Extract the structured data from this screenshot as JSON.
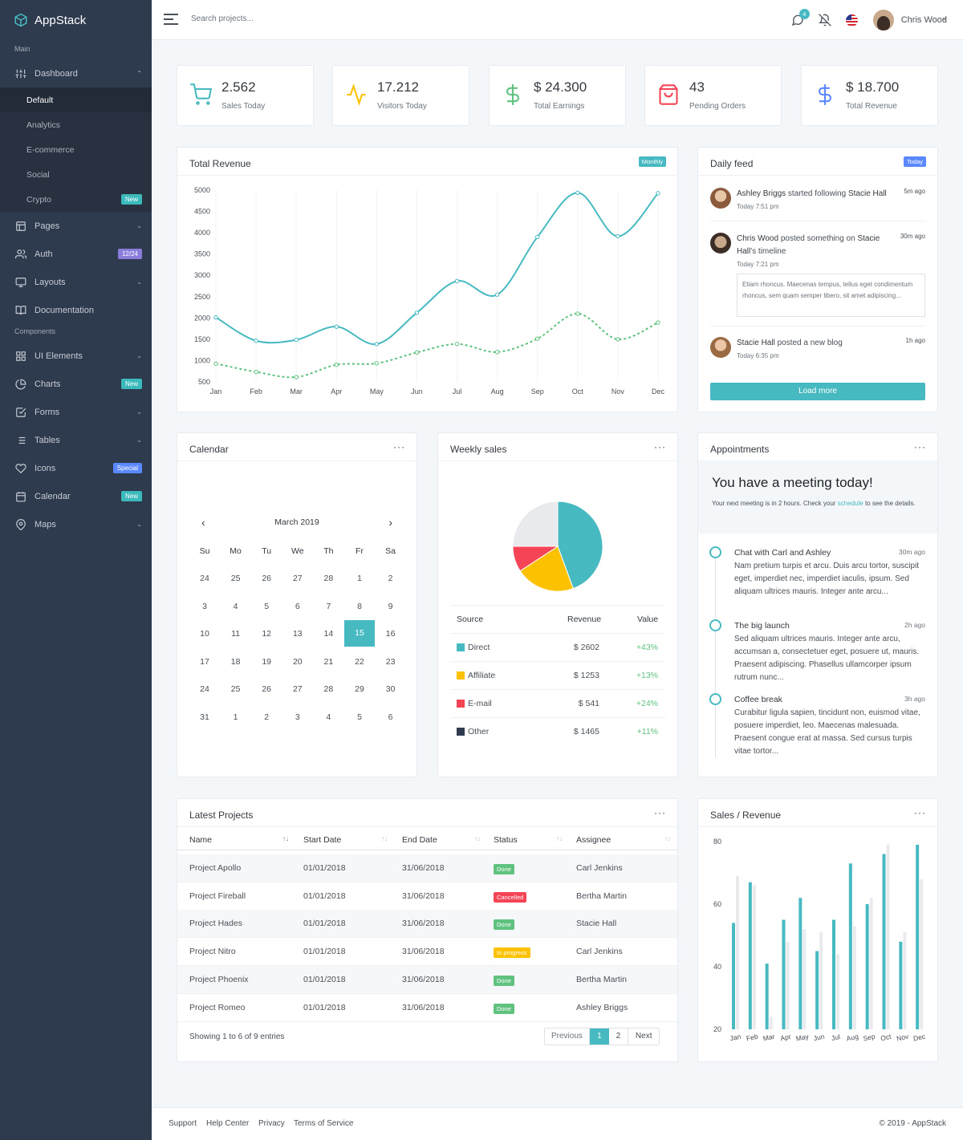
{
  "brand": "AppStack",
  "sidebar": {
    "header_main": "Main",
    "header_components": "Components",
    "dashboard": "Dashboard",
    "sub": [
      "Default",
      "Analytics",
      "E-commerce",
      "Social",
      "Crypto"
    ],
    "crypto_badge": "New",
    "pages": "Pages",
    "auth": "Auth",
    "auth_badge": "12/24",
    "layouts": "Layouts",
    "documentation": "Documentation",
    "ui": "UI Elements",
    "charts": "Charts",
    "charts_badge": "New",
    "forms": "Forms",
    "tables": "Tables",
    "icons": "Icons",
    "icons_badge": "Special",
    "calendar": "Calendar",
    "calendar_badge": "New",
    "maps": "Maps"
  },
  "topbar": {
    "search_placeholder": "Search projects...",
    "notif_count": "4",
    "user": "Chris Wood"
  },
  "stats": [
    {
      "value": "2.562",
      "label": "Sales Today",
      "icon": "cart-icon"
    },
    {
      "value": "17.212",
      "label": "Visitors Today",
      "icon": "activity-icon"
    },
    {
      "value": "$ 24.300",
      "label": "Total Earnings",
      "icon": "dollar-icon"
    },
    {
      "value": "43",
      "label": "Pending Orders",
      "icon": "shopping-bag-icon"
    },
    {
      "value": "$ 18.700",
      "label": "Total Revenue",
      "icon": "dollar-icon"
    }
  ],
  "revenue": {
    "title": "Total Revenue",
    "badge": "Monthly"
  },
  "chart_data": [
    {
      "type": "line",
      "x": [
        "Jan",
        "Feb",
        "Mar",
        "Apr",
        "May",
        "Jun",
        "Jul",
        "Aug",
        "Sep",
        "Oct",
        "Nov",
        "Dec"
      ],
      "ylim": [
        500,
        5000
      ],
      "yticks": [
        5000,
        4500,
        4000,
        3500,
        3000,
        2500,
        2000,
        1500,
        1000,
        500
      ],
      "series": [
        {
          "values": [
            2015,
            1465,
            1487,
            1796,
            1387,
            2123,
            2866,
            2548,
            3902,
            4938,
            3917,
            4927
          ],
          "color": "#47bac1",
          "style": "solid"
        },
        {
          "values": [
            928,
            734,
            612,
            901,
            936,
            1190,
            1388,
            1200,
            1514,
            2102,
            1500,
            1892
          ],
          "color": "#5fc27e",
          "style": "dotted"
        }
      ]
    },
    {
      "type": "pie",
      "title": "Weekly sales",
      "values": [
        2602,
        1253,
        541,
        1465
      ],
      "labels": [
        "Direct",
        "Affiliate",
        "E-mail",
        "Other"
      ],
      "colors": [
        "#47bac1",
        "#fcc100",
        "#f44455",
        "#e8eaed"
      ]
    },
    {
      "type": "bar",
      "title": "Sales / Revenue",
      "categories": [
        "Jan",
        "Feb",
        "Mar",
        "Apr",
        "May",
        "Jun",
        "Jul",
        "Aug",
        "Sep",
        "Oct",
        "Nov",
        "Dec"
      ],
      "ylim": [
        20,
        80
      ],
      "yticks": [
        80,
        60,
        40,
        20
      ],
      "series": [
        {
          "values": [
            54,
            67,
            41,
            55,
            62,
            45,
            55,
            73,
            60,
            76,
            48,
            79
          ],
          "color": "#47bac1"
        },
        {
          "values": [
            69,
            66,
            24,
            48,
            52,
            51,
            44,
            53,
            62,
            79,
            51,
            68
          ],
          "color": "#e8eaed"
        }
      ]
    }
  ],
  "feed": {
    "title": "Daily feed",
    "badge": "Today",
    "items": [
      {
        "name": "Ashley Briggs",
        "action": " started following ",
        "target": "Stacie Hall",
        "time": "5m ago",
        "sub": "Today 7:51 pm"
      },
      {
        "name": "Chris Wood",
        "action": " posted something on ",
        "target": "Stacie Hall",
        "target2": "'s timeline",
        "time": "30m ago",
        "sub": "Today 7:21 pm",
        "quote": "Etiam rhoncus. Maecenas tempus, tellus eget condimentum rhoncus, sem quam semper libero, sit amet adipiscing..."
      },
      {
        "name": "Stacie Hall",
        "action": " posted a new blog",
        "time": "1h ago",
        "sub": "Today 6:35 pm"
      }
    ],
    "load_more": "Load more"
  },
  "calendar": {
    "title": "Calendar",
    "month": "March 2019",
    "days": [
      "Su",
      "Mo",
      "Tu",
      "We",
      "Th",
      "Fr",
      "Sa"
    ],
    "weeks": [
      [
        "24",
        "25",
        "26",
        "27",
        "28",
        "1",
        "2"
      ],
      [
        "3",
        "4",
        "5",
        "6",
        "7",
        "8",
        "9"
      ],
      [
        "10",
        "11",
        "12",
        "13",
        "14",
        "15",
        "16"
      ],
      [
        "17",
        "18",
        "19",
        "20",
        "21",
        "22",
        "23"
      ],
      [
        "24",
        "25",
        "26",
        "27",
        "28",
        "29",
        "30"
      ],
      [
        "31",
        "1",
        "2",
        "3",
        "4",
        "5",
        "6"
      ]
    ]
  },
  "weekly": {
    "title": "Weekly sales",
    "headers": [
      "Source",
      "Revenue",
      "Value"
    ],
    "rows": [
      {
        "source": "Direct",
        "revenue": "$ 2602",
        "value": "+43%",
        "color": "#47bac1"
      },
      {
        "source": "Affiliate",
        "revenue": "$ 1253",
        "value": "+13%",
        "color": "#fcc100"
      },
      {
        "source": "E-mail",
        "revenue": "$ 541",
        "value": "+24%",
        "color": "#f44455"
      },
      {
        "source": "Other",
        "revenue": "$ 1465",
        "value": "+11%",
        "color": "#2e3a4d"
      }
    ]
  },
  "appointments": {
    "title": "Appointments",
    "headline": "You have a meeting today!",
    "sub_pre": "Your next meeting is in 2 hours. Check your ",
    "sub_link": "schedule",
    "sub_post": " to see the details.",
    "items": [
      {
        "title": "Chat with Carl and Ashley",
        "time": "30m ago",
        "text": "Nam pretium turpis et arcu. Duis arcu tortor, suscipit eget, imperdiet nec, imperdiet iaculis, ipsum. Sed aliquam ultrices mauris. Integer ante arcu..."
      },
      {
        "title": "The big launch",
        "time": "2h ago",
        "text": "Sed aliquam ultrices mauris. Integer ante arcu, accumsan a, consectetuer eget, posuere ut, mauris. Praesent adipiscing. Phasellus ullamcorper ipsum rutrum nunc..."
      },
      {
        "title": "Coffee break",
        "time": "3h ago",
        "text": "Curabitur ligula sapien, tincidunt non, euismod vitae, posuere imperdiet, leo. Maecenas malesuada. Praesent congue erat at massa. Sed cursus turpis vitae tortor..."
      }
    ]
  },
  "projects": {
    "title": "Latest Projects",
    "headers": [
      "Name",
      "Start Date",
      "End Date",
      "Status",
      "Assignee"
    ],
    "rows": [
      {
        "name": "Project Apollo",
        "start": "01/01/2018",
        "end": "31/06/2018",
        "status": "Done",
        "color": "#5fc27e",
        "assignee": "Carl Jenkins"
      },
      {
        "name": "Project Fireball",
        "start": "01/01/2018",
        "end": "31/06/2018",
        "status": "Cancelled",
        "color": "#f44455",
        "assignee": "Bertha Martin"
      },
      {
        "name": "Project Hades",
        "start": "01/01/2018",
        "end": "31/06/2018",
        "status": "Done",
        "color": "#5fc27e",
        "assignee": "Stacie Hall"
      },
      {
        "name": "Project Nitro",
        "start": "01/01/2018",
        "end": "31/06/2018",
        "status": "In progress",
        "color": "#fcc100",
        "assignee": "Carl Jenkins"
      },
      {
        "name": "Project Phoenix",
        "start": "01/01/2018",
        "end": "31/06/2018",
        "status": "Done",
        "color": "#5fc27e",
        "assignee": "Bertha Martin"
      },
      {
        "name": "Project Romeo",
        "start": "01/01/2018",
        "end": "31/06/2018",
        "status": "Done",
        "color": "#5fc27e",
        "assignee": "Ashley Briggs"
      }
    ],
    "showing": "Showing 1 to 6 of 9 entries",
    "pager": [
      "Previous",
      "1",
      "2",
      "Next"
    ]
  },
  "footer": {
    "links": [
      "Support",
      "Help Center",
      "Privacy",
      "Terms of Service"
    ],
    "copy": "© 2019 - AppStack"
  }
}
